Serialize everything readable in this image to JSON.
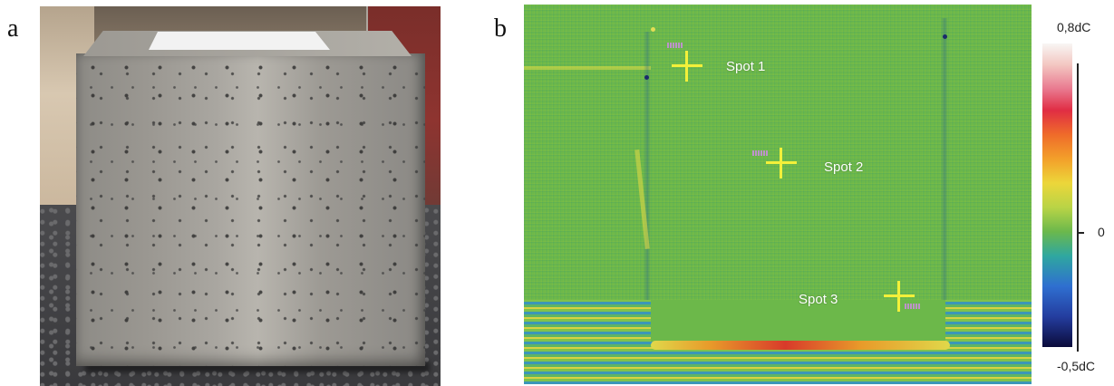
{
  "panels": {
    "a": {
      "letter": "a"
    },
    "b": {
      "letter": "b"
    }
  },
  "thermal": {
    "spots": [
      {
        "label": "Spot 1"
      },
      {
        "label": "Spot 2"
      },
      {
        "label": "Spot 3"
      }
    ]
  },
  "color_scale": {
    "max_label": "0,8dC",
    "zero_label": "0",
    "min_label": "-0,5dC"
  },
  "colors": {
    "marker": "#f3f03a",
    "background": "#6cb84a"
  }
}
